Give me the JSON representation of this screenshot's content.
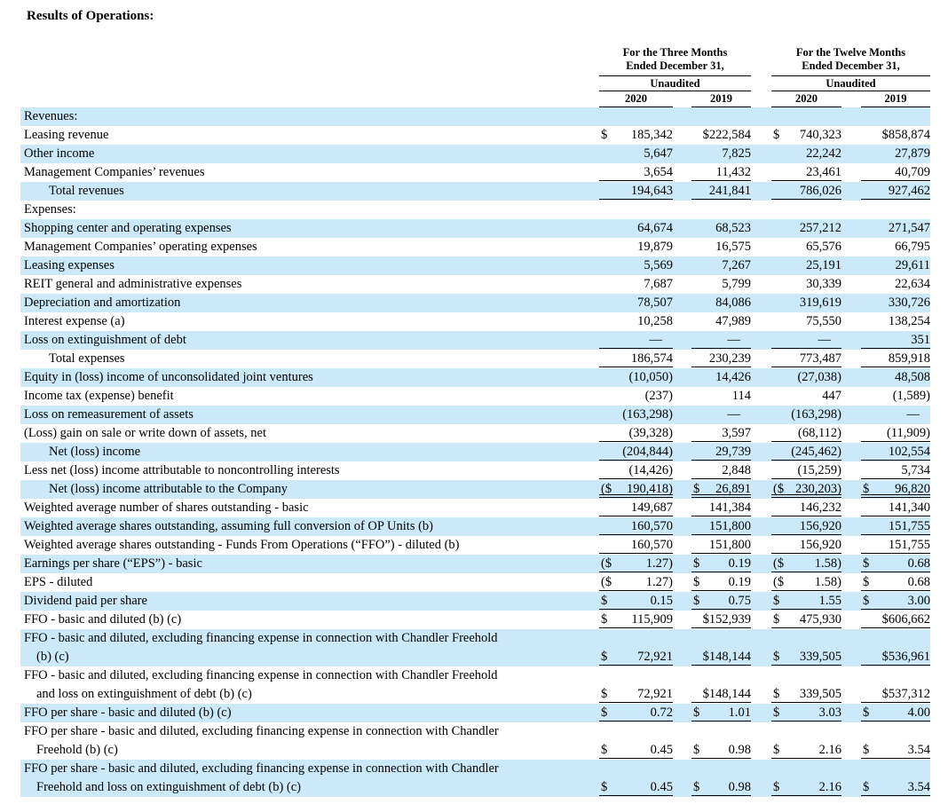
{
  "page": {
    "title": "Results of Operations:"
  },
  "colors": {
    "row_shade": "#cbe9f9",
    "text": "#000000",
    "rule": "#000000"
  },
  "table": {
    "groups": [
      {
        "line1": "For the Three Months",
        "line2": "Ended December 31,",
        "sub": "Unaudited",
        "years": [
          "2020",
          "2019"
        ]
      },
      {
        "line1": "For the Twelve Months",
        "line2": "Ended December 31,",
        "sub": "Unaudited",
        "years": [
          "2020",
          "2019"
        ]
      }
    ],
    "rows": [
      {
        "label": "Revenues:",
        "shade": true,
        "vals": null
      },
      {
        "label": "Leasing revenue",
        "shade": false,
        "vals": [
          [
            "$",
            "185,342"
          ],
          [
            "",
            "$222,584"
          ],
          [
            "$",
            "740,323"
          ],
          [
            "",
            "$858,874"
          ]
        ]
      },
      {
        "label": "Other income",
        "shade": true,
        "vals": [
          [
            "",
            "5,647"
          ],
          [
            "",
            "7,825"
          ],
          [
            "",
            "22,242"
          ],
          [
            "",
            "27,879"
          ]
        ]
      },
      {
        "label": "Management Companies’ revenues",
        "shade": false,
        "u": 1,
        "vals": [
          [
            "",
            "3,654"
          ],
          [
            "",
            "11,432"
          ],
          [
            "",
            "23,461"
          ],
          [
            "",
            "40,709"
          ]
        ]
      },
      {
        "label": "Total revenues",
        "indent": true,
        "shade": true,
        "u": 1,
        "vals": [
          [
            "",
            "194,643"
          ],
          [
            "",
            "241,841"
          ],
          [
            "",
            "786,026"
          ],
          [
            "",
            "927,462"
          ]
        ]
      },
      {
        "label": "Expenses:",
        "shade": false,
        "vals": null
      },
      {
        "label": "Shopping center and operating expenses",
        "shade": true,
        "vals": [
          [
            "",
            "64,674"
          ],
          [
            "",
            "68,523"
          ],
          [
            "",
            "257,212"
          ],
          [
            "",
            "271,547"
          ]
        ]
      },
      {
        "label": "Management Companies’ operating expenses",
        "shade": false,
        "vals": [
          [
            "",
            "19,879"
          ],
          [
            "",
            "16,575"
          ],
          [
            "",
            "65,576"
          ],
          [
            "",
            "66,795"
          ]
        ]
      },
      {
        "label": "Leasing expenses",
        "shade": true,
        "vals": [
          [
            "",
            "5,569"
          ],
          [
            "",
            "7,267"
          ],
          [
            "",
            "25,191"
          ],
          [
            "",
            "29,611"
          ]
        ]
      },
      {
        "label": "REIT general and administrative expenses",
        "shade": false,
        "vals": [
          [
            "",
            "7,687"
          ],
          [
            "",
            "5,799"
          ],
          [
            "",
            "30,339"
          ],
          [
            "",
            "22,634"
          ]
        ]
      },
      {
        "label": "Depreciation and amortization",
        "shade": true,
        "vals": [
          [
            "",
            "78,507"
          ],
          [
            "",
            "84,086"
          ],
          [
            "",
            "319,619"
          ],
          [
            "",
            "330,726"
          ]
        ]
      },
      {
        "label": "Interest expense (a)",
        "shade": false,
        "vals": [
          [
            "",
            "10,258"
          ],
          [
            "",
            "47,989"
          ],
          [
            "",
            "75,550"
          ],
          [
            "",
            "138,254"
          ]
        ]
      },
      {
        "label": "Loss on extinguishment of debt",
        "shade": true,
        "u": 1,
        "vals": [
          [
            "",
            "—"
          ],
          [
            "",
            "—"
          ],
          [
            "",
            "—"
          ],
          [
            "",
            "351"
          ]
        ]
      },
      {
        "label": "Total expenses",
        "indent": true,
        "shade": false,
        "u": 1,
        "vals": [
          [
            "",
            "186,574"
          ],
          [
            "",
            "230,239"
          ],
          [
            "",
            "773,487"
          ],
          [
            "",
            "859,918"
          ]
        ]
      },
      {
        "label": "Equity in (loss) income of unconsolidated joint ventures",
        "shade": true,
        "vals": [
          [
            "",
            "(10,050)"
          ],
          [
            "",
            "14,426"
          ],
          [
            "",
            "(27,038)"
          ],
          [
            "",
            "48,508"
          ]
        ]
      },
      {
        "label": "Income tax (expense) benefit",
        "shade": false,
        "vals": [
          [
            "",
            "(237)"
          ],
          [
            "",
            "114"
          ],
          [
            "",
            "447"
          ],
          [
            "",
            "(1,589)"
          ]
        ]
      },
      {
        "label": "Loss on remeasurement of assets",
        "shade": true,
        "vals": [
          [
            "",
            "(163,298)"
          ],
          [
            "",
            "—"
          ],
          [
            "",
            "(163,298)"
          ],
          [
            "",
            "—"
          ]
        ]
      },
      {
        "label": "(Loss) gain on sale or write down of assets, net",
        "shade": false,
        "u": 1,
        "vals": [
          [
            "",
            "(39,328)"
          ],
          [
            "",
            "3,597"
          ],
          [
            "",
            "(68,112)"
          ],
          [
            "",
            "(11,909)"
          ]
        ]
      },
      {
        "label": "Net (loss) income",
        "indent": true,
        "shade": true,
        "u": 1,
        "vals": [
          [
            "",
            "(204,844)"
          ],
          [
            "",
            "29,739"
          ],
          [
            "",
            "(245,462)"
          ],
          [
            "",
            "102,554"
          ]
        ]
      },
      {
        "label": "Less net (loss) income attributable to noncontrolling interests",
        "shade": false,
        "u": 1,
        "vals": [
          [
            "",
            "(14,426)"
          ],
          [
            "",
            "2,848"
          ],
          [
            "",
            "(15,259)"
          ],
          [
            "",
            "5,734"
          ]
        ]
      },
      {
        "label": "Net (loss) income attributable to the Company",
        "indent": true,
        "shade": true,
        "u": 2,
        "vals": [
          [
            "($",
            "190,418)"
          ],
          [
            "$",
            "26,891"
          ],
          [
            "($",
            "230,203)"
          ],
          [
            "$",
            "96,820"
          ]
        ]
      },
      {
        "label": "Weighted average number of shares outstanding - basic",
        "shade": false,
        "u": 1,
        "vals": [
          [
            "",
            "149,687"
          ],
          [
            "",
            "141,384"
          ],
          [
            "",
            "146,232"
          ],
          [
            "",
            "141,340"
          ]
        ]
      },
      {
        "label": "Weighted average shares outstanding, assuming full conversion of OP Units (b)",
        "shade": true,
        "u": 1,
        "vals": [
          [
            "",
            "160,570"
          ],
          [
            "",
            "151,800"
          ],
          [
            "",
            "156,920"
          ],
          [
            "",
            "151,755"
          ]
        ]
      },
      {
        "label": "Weighted average shares outstanding - Funds From Operations (“FFO”) - diluted (b)",
        "shade": false,
        "u": 1,
        "vals": [
          [
            "",
            "160,570"
          ],
          [
            "",
            "151,800"
          ],
          [
            "",
            "156,920"
          ],
          [
            "",
            "151,755"
          ]
        ]
      },
      {
        "label": "Earnings per share (“EPS”) - basic",
        "shade": true,
        "u": 1,
        "vals": [
          [
            "($",
            "1.27)"
          ],
          [
            "$",
            "0.19"
          ],
          [
            "($",
            "1.58)"
          ],
          [
            "$",
            "0.68"
          ]
        ]
      },
      {
        "label": "EPS - diluted",
        "shade": false,
        "u": 1,
        "vals": [
          [
            "($",
            "1.27)"
          ],
          [
            "$",
            "0.19"
          ],
          [
            "($",
            "1.58)"
          ],
          [
            "$",
            "0.68"
          ]
        ]
      },
      {
        "label": "Dividend paid per share",
        "shade": true,
        "u": 1,
        "vals": [
          [
            "$",
            "0.15"
          ],
          [
            "$",
            "0.75"
          ],
          [
            "$",
            "1.55"
          ],
          [
            "$",
            "3.00"
          ]
        ]
      },
      {
        "label": "FFO - basic and diluted (b) (c)",
        "shade": false,
        "u": 1,
        "vals": [
          [
            "$",
            "115,909"
          ],
          [
            "",
            "$152,939"
          ],
          [
            "$",
            "475,930"
          ],
          [
            "",
            "$606,662"
          ]
        ]
      },
      {
        "label": "FFO - basic and diluted, excluding financing expense in connection with Chandler Freehold",
        "label2": "(b) (c)",
        "shade": true,
        "u": 1,
        "vals": [
          [
            "$",
            "72,921"
          ],
          [
            "",
            "$148,144"
          ],
          [
            "$",
            "339,505"
          ],
          [
            "",
            "$536,961"
          ]
        ]
      },
      {
        "label": "FFO - basic and diluted, excluding financing expense in connection with Chandler Freehold",
        "label2": "and loss on extinguishment of debt (b) (c)",
        "shade": false,
        "u": 1,
        "vals": [
          [
            "$",
            "72,921"
          ],
          [
            "",
            "$148,144"
          ],
          [
            "$",
            "339,505"
          ],
          [
            "",
            "$537,312"
          ]
        ]
      },
      {
        "label": "FFO per share - basic and diluted (b) (c)",
        "shade": true,
        "u": 1,
        "vals": [
          [
            "$",
            "0.72"
          ],
          [
            "$",
            "1.01"
          ],
          [
            "$",
            "3.03"
          ],
          [
            "$",
            "4.00"
          ]
        ]
      },
      {
        "label": "FFO per share - basic and diluted, excluding financing expense in connection with Chandler",
        "label2": "Freehold (b) (c)",
        "shade": false,
        "u": 1,
        "vals": [
          [
            "$",
            "0.45"
          ],
          [
            "$",
            "0.98"
          ],
          [
            "$",
            "2.16"
          ],
          [
            "$",
            "3.54"
          ]
        ]
      },
      {
        "label": "FFO per share - basic and diluted, excluding financing expense in connection with Chandler",
        "label2": "Freehold and loss on extinguishment of debt (b) (c)",
        "shade": true,
        "u": 1,
        "vals": [
          [
            "$",
            "0.45"
          ],
          [
            "$",
            "0.98"
          ],
          [
            "$",
            "2.16"
          ],
          [
            "$",
            "3.54"
          ]
        ]
      }
    ]
  }
}
